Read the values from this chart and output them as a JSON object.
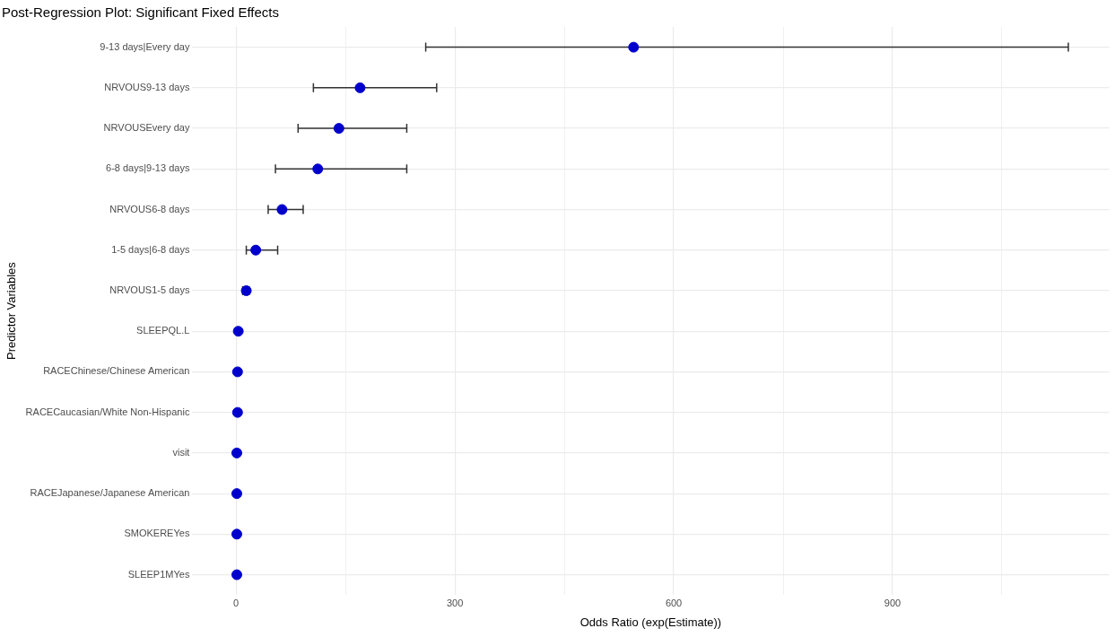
{
  "chart_data": {
    "type": "scatter",
    "orientation": "horizontal",
    "title": "Post-Regression Plot: Significant Fixed Effects",
    "xlabel": "Odds Ratio (exp(Estimate))",
    "ylabel": "Predictor Variables",
    "categories": [
      "9-13 days|Every day",
      "NRVOUS9-13 days",
      "NRVOUSEvery day",
      "6-8 days|9-13 days",
      "NRVOUS6-8 days",
      "1-5 days|6-8 days",
      "NRVOUS1-5 days",
      "SLEEPQL.L",
      "RACEChinese/Chinese American",
      "RACECaucasian/White Non-Hispanic",
      "visit",
      "RACEJapanese/Japanese American",
      "SMOKEREYes",
      "SLEEP1MYes"
    ],
    "series": [
      {
        "color": "#0000cd",
        "values": [
          545,
          170,
          141,
          112,
          63,
          27,
          14,
          3,
          2,
          2,
          1,
          1,
          1,
          1
        ],
        "errors": [
          [
            260,
            1141
          ],
          [
            106,
            275
          ],
          [
            85,
            234
          ],
          [
            54,
            234
          ],
          [
            44,
            92
          ],
          [
            14,
            57
          ],
          [
            9,
            18
          ],
          null,
          null,
          null,
          null,
          null,
          null,
          null
        ]
      }
    ],
    "xlim": [
      -60,
      1197
    ],
    "xticks": [
      0,
      {
        "value": 150,
        "label": null
      },
      300,
      {
        "value": 450,
        "label": null
      },
      600,
      {
        "value": 750,
        "label": null
      },
      900,
      {
        "value": 1050,
        "label": null
      }
    ],
    "grid": true,
    "legend": false,
    "marker": "circle"
  }
}
